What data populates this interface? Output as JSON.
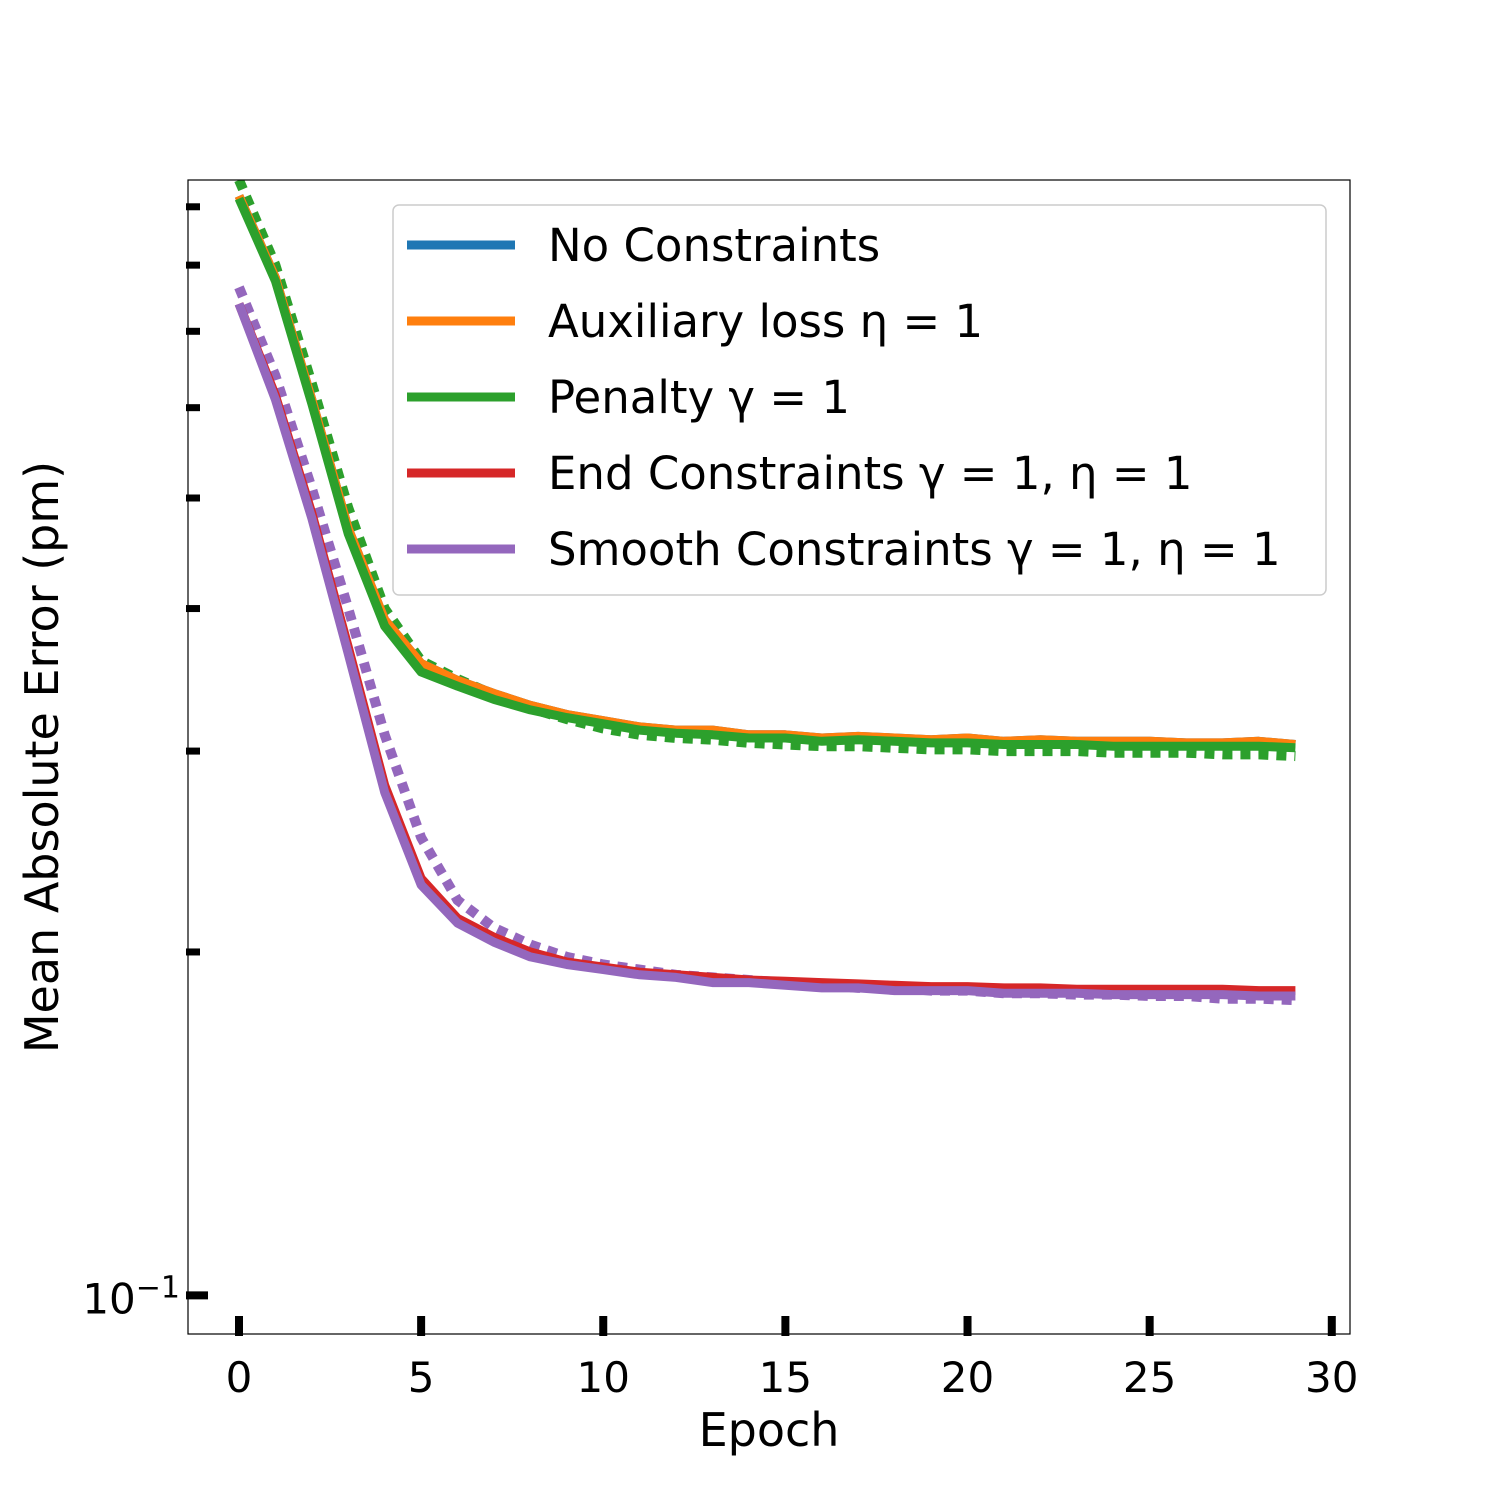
{
  "chart_data": {
    "type": "line",
    "title": "",
    "xlabel": "Epoch",
    "ylabel": "Mean Absolute Error (pm)",
    "yscale": "log",
    "xlim": [
      -1.4,
      30.5
    ],
    "ylim": [
      0.0925,
      0.95
    ],
    "xticks": [
      0,
      5,
      10,
      15,
      20,
      25,
      30
    ],
    "xtick_labels": [
      "0",
      "5",
      "10",
      "15",
      "20",
      "25",
      "30"
    ],
    "yticks": [
      0.1
    ],
    "ytick_labels": [
      {
        "base": "10",
        "exp": "−1"
      }
    ],
    "y_minor_ticks": [
      0.2,
      0.3,
      0.4,
      0.5,
      0.6,
      0.7,
      0.8,
      0.9
    ],
    "legend_position": "upper-right",
    "grid": false,
    "x": [
      0,
      1,
      2,
      3,
      4,
      5,
      6,
      7,
      8,
      9,
      10,
      11,
      12,
      13,
      14,
      15,
      16,
      17,
      18,
      19,
      20,
      21,
      22,
      23,
      24,
      25,
      26,
      27,
      28,
      29
    ],
    "series": [
      {
        "name": "No Constraints",
        "color": "#1f77b4",
        "style": "solid",
        "values": [
          0.92,
          0.78,
          0.61,
          0.47,
          0.391,
          0.358,
          0.346,
          0.337,
          0.329,
          0.323,
          0.319,
          0.315,
          0.313,
          0.313,
          0.31,
          0.31,
          0.308,
          0.309,
          0.308,
          0.307,
          0.308,
          0.306,
          0.307,
          0.306,
          0.306,
          0.306,
          0.305,
          0.305,
          0.306,
          0.304
        ]
      },
      {
        "name": "Auxiliary loss η = 1",
        "color": "#ff7f0e",
        "style": "solid",
        "values": [
          0.92,
          0.78,
          0.61,
          0.47,
          0.391,
          0.358,
          0.346,
          0.337,
          0.329,
          0.323,
          0.319,
          0.315,
          0.313,
          0.313,
          0.31,
          0.31,
          0.308,
          0.309,
          0.308,
          0.307,
          0.308,
          0.306,
          0.307,
          0.306,
          0.306,
          0.306,
          0.305,
          0.305,
          0.306,
          0.304
        ]
      },
      {
        "name": "Penalty γ = 1",
        "color": "#2ca02c",
        "style": "solid",
        "values": [
          0.915,
          0.775,
          0.605,
          0.465,
          0.386,
          0.352,
          0.342,
          0.333,
          0.326,
          0.321,
          0.317,
          0.313,
          0.311,
          0.31,
          0.308,
          0.308,
          0.306,
          0.307,
          0.306,
          0.305,
          0.305,
          0.304,
          0.304,
          0.304,
          0.303,
          0.303,
          0.303,
          0.303,
          0.303,
          0.302
        ]
      },
      {
        "name": "End Constraints γ = 1, η = 1",
        "color": "#d62728",
        "style": "solid",
        "values": [
          0.74,
          0.615,
          0.485,
          0.37,
          0.28,
          0.232,
          0.214,
          0.206,
          0.2,
          0.196,
          0.194,
          0.192,
          0.191,
          0.19,
          0.189,
          0.1885,
          0.188,
          0.1875,
          0.187,
          0.1865,
          0.1865,
          0.186,
          0.186,
          0.1855,
          0.1855,
          0.1855,
          0.1855,
          0.1855,
          0.185,
          0.185
        ]
      },
      {
        "name": "Smooth Constraints γ = 1, η = 1",
        "color": "#9467bd",
        "style": "solid",
        "values": [
          0.74,
          0.61,
          0.48,
          0.365,
          0.276,
          0.229,
          0.212,
          0.204,
          0.198,
          0.195,
          0.193,
          0.191,
          0.19,
          0.188,
          0.188,
          0.187,
          0.186,
          0.186,
          0.185,
          0.185,
          0.185,
          0.184,
          0.184,
          0.184,
          0.1835,
          0.1835,
          0.1835,
          0.1835,
          0.183,
          0.183
        ]
      },
      {
        "name": "",
        "color": "#2ca02c",
        "style": "dotted",
        "values": [
          0.95,
          0.8,
          0.63,
          0.49,
          0.4,
          0.36,
          0.347,
          0.336,
          0.327,
          0.32,
          0.314,
          0.31,
          0.308,
          0.307,
          0.305,
          0.304,
          0.303,
          0.303,
          0.302,
          0.301,
          0.301,
          0.3,
          0.3,
          0.3,
          0.299,
          0.299,
          0.299,
          0.298,
          0.298,
          0.297
        ]
      },
      {
        "name": "",
        "color": "#9467bd",
        "style": "dotted",
        "values": [
          0.765,
          0.64,
          0.51,
          0.4,
          0.31,
          0.252,
          0.222,
          0.21,
          0.203,
          0.198,
          0.195,
          0.193,
          0.191,
          0.19,
          0.189,
          0.188,
          0.187,
          0.186,
          0.186,
          0.185,
          0.185,
          0.184,
          0.184,
          0.1835,
          0.1835,
          0.183,
          0.183,
          0.182,
          0.182,
          0.1815
        ]
      }
    ]
  }
}
